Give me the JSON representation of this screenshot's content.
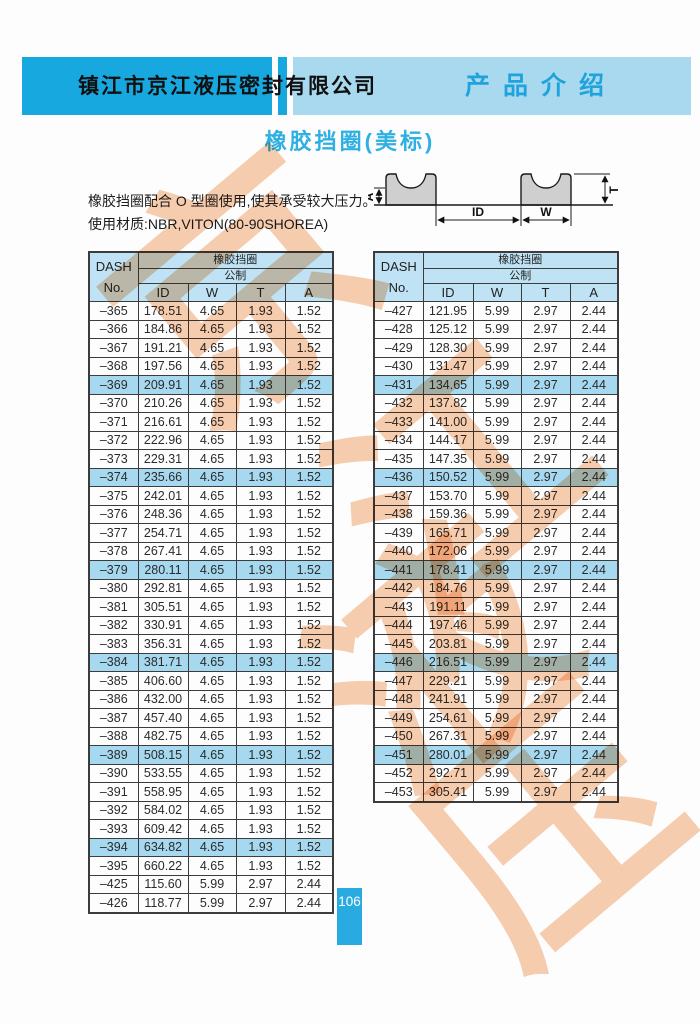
{
  "header": {
    "company": "镇江市京江液压密封有限公司",
    "section": "产品介绍"
  },
  "page_title": "橡胶挡圈(美标)",
  "description": {
    "line1": "橡胶挡圈配合 O 型圈使用,使其承受较大压力。",
    "line2": "使用材质:NBR,VITON(80-90SHOREA)"
  },
  "diagram": {
    "labels": {
      "a": "A",
      "id": "ID",
      "w": "W",
      "t": "T"
    }
  },
  "tables": {
    "header": {
      "dash_line1": "DASH",
      "dash_line2": "No.",
      "group": "橡胶挡圈",
      "subgroup": "公制",
      "columns": [
        "ID",
        "W",
        "T",
        "A"
      ]
    },
    "left": {
      "highlight": [
        "–369",
        "–374",
        "–379",
        "–384",
        "–389",
        "–394"
      ],
      "rows": [
        [
          "–365",
          "178.51",
          "4.65",
          "1.93",
          "1.52"
        ],
        [
          "–366",
          "184.86",
          "4.65",
          "1.93",
          "1.52"
        ],
        [
          "–367",
          "191.21",
          "4.65",
          "1.93",
          "1.52"
        ],
        [
          "–368",
          "197.56",
          "4.65",
          "1.93",
          "1.52"
        ],
        [
          "–369",
          "209.91",
          "4.65",
          "1.93",
          "1.52"
        ],
        [
          "–370",
          "210.26",
          "4.65",
          "1.93",
          "1.52"
        ],
        [
          "–371",
          "216.61",
          "4.65",
          "1.93",
          "1.52"
        ],
        [
          "–372",
          "222.96",
          "4.65",
          "1.93",
          "1.52"
        ],
        [
          "–373",
          "229.31",
          "4.65",
          "1.93",
          "1.52"
        ],
        [
          "–374",
          "235.66",
          "4.65",
          "1.93",
          "1.52"
        ],
        [
          "–375",
          "242.01",
          "4.65",
          "1.93",
          "1.52"
        ],
        [
          "–376",
          "248.36",
          "4.65",
          "1.93",
          "1.52"
        ],
        [
          "–377",
          "254.71",
          "4.65",
          "1.93",
          "1.52"
        ],
        [
          "–378",
          "267.41",
          "4.65",
          "1.93",
          "1.52"
        ],
        [
          "–379",
          "280.11",
          "4.65",
          "1.93",
          "1.52"
        ],
        [
          "–380",
          "292.81",
          "4.65",
          "1.93",
          "1.52"
        ],
        [
          "–381",
          "305.51",
          "4.65",
          "1.93",
          "1.52"
        ],
        [
          "–382",
          "330.91",
          "4.65",
          "1.93",
          "1.52"
        ],
        [
          "–383",
          "356.31",
          "4.65",
          "1.93",
          "1.52"
        ],
        [
          "–384",
          "381.71",
          "4.65",
          "1.93",
          "1.52"
        ],
        [
          "–385",
          "406.60",
          "4.65",
          "1.93",
          "1.52"
        ],
        [
          "–386",
          "432.00",
          "4.65",
          "1.93",
          "1.52"
        ],
        [
          "–387",
          "457.40",
          "4.65",
          "1.93",
          "1.52"
        ],
        [
          "–388",
          "482.75",
          "4.65",
          "1.93",
          "1.52"
        ],
        [
          "–389",
          "508.15",
          "4.65",
          "1.93",
          "1.52"
        ],
        [
          "–390",
          "533.55",
          "4.65",
          "1.93",
          "1.52"
        ],
        [
          "–391",
          "558.95",
          "4.65",
          "1.93",
          "1.52"
        ],
        [
          "–392",
          "584.02",
          "4.65",
          "1.93",
          "1.52"
        ],
        [
          "–393",
          "609.42",
          "4.65",
          "1.93",
          "1.52"
        ],
        [
          "–394",
          "634.82",
          "4.65",
          "1.93",
          "1.52"
        ],
        [
          "–395",
          "660.22",
          "4.65",
          "1.93",
          "1.52"
        ],
        [
          "–425",
          "115.60",
          "5.99",
          "2.97",
          "2.44"
        ],
        [
          "–426",
          "118.77",
          "5.99",
          "2.97",
          "2.44"
        ]
      ]
    },
    "right": {
      "highlight": [
        "–431",
        "–436",
        "–441",
        "–446",
        "–451"
      ],
      "rows": [
        [
          "–427",
          "121.95",
          "5.99",
          "2.97",
          "2.44"
        ],
        [
          "–428",
          "125.12",
          "5.99",
          "2.97",
          "2.44"
        ],
        [
          "–429",
          "128.30",
          "5.99",
          "2.97",
          "2.44"
        ],
        [
          "–430",
          "131.47",
          "5.99",
          "2.97",
          "2.44"
        ],
        [
          "–431",
          "134.65",
          "5.99",
          "2.97",
          "2.44"
        ],
        [
          "–432",
          "137.82",
          "5.99",
          "2.97",
          "2.44"
        ],
        [
          "–433",
          "141.00",
          "5.99",
          "2.97",
          "2.44"
        ],
        [
          "–434",
          "144.17",
          "5.99",
          "2.97",
          "2.44"
        ],
        [
          "–435",
          "147.35",
          "5.99",
          "2.97",
          "2.44"
        ],
        [
          "–436",
          "150.52",
          "5.99",
          "2.97",
          "2.44"
        ],
        [
          "–437",
          "153.70",
          "5.99",
          "2.97",
          "2.44"
        ],
        [
          "–438",
          "159.36",
          "5.99",
          "2.97",
          "2.44"
        ],
        [
          "–439",
          "165.71",
          "5.99",
          "2.97",
          "2.44"
        ],
        [
          "–440",
          "172.06",
          "5.99",
          "2.97",
          "2.44"
        ],
        [
          "–441",
          "178.41",
          "5.99",
          "2.97",
          "2.44"
        ],
        [
          "–442",
          "184.76",
          "5.99",
          "2.97",
          "2.44"
        ],
        [
          "–443",
          "191.11",
          "5.99",
          "2.97",
          "2.44"
        ],
        [
          "–444",
          "197.46",
          "5.99",
          "2.97",
          "2.44"
        ],
        [
          "–445",
          "203.81",
          "5.99",
          "2.97",
          "2.44"
        ],
        [
          "–446",
          "216.51",
          "5.99",
          "2.97",
          "2.44"
        ],
        [
          "–447",
          "229.21",
          "5.99",
          "2.97",
          "2.44"
        ],
        [
          "–448",
          "241.91",
          "5.99",
          "2.97",
          "2.44"
        ],
        [
          "–449",
          "254.61",
          "5.99",
          "2.97",
          "2.44"
        ],
        [
          "–450",
          "267.31",
          "5.99",
          "2.97",
          "2.44"
        ],
        [
          "–451",
          "280.01",
          "5.99",
          "2.97",
          "2.44"
        ],
        [
          "–452",
          "292.71",
          "5.99",
          "2.97",
          "2.44"
        ],
        [
          "–453",
          "305.41",
          "5.99",
          "2.97",
          "2.44"
        ]
      ]
    }
  },
  "watermark": {
    "chars": [
      "京",
      "江",
      "液",
      "压"
    ]
  },
  "page_number": "106",
  "colors": {
    "accent_blue": "#29abe2",
    "band_light_blue": "#a9d9ef",
    "table_header_bg": "#bfe3f4",
    "row_highlight": "#a6d8ef",
    "title_cyan": "#2eb0e2",
    "watermark_orange": "#f2a570"
  }
}
